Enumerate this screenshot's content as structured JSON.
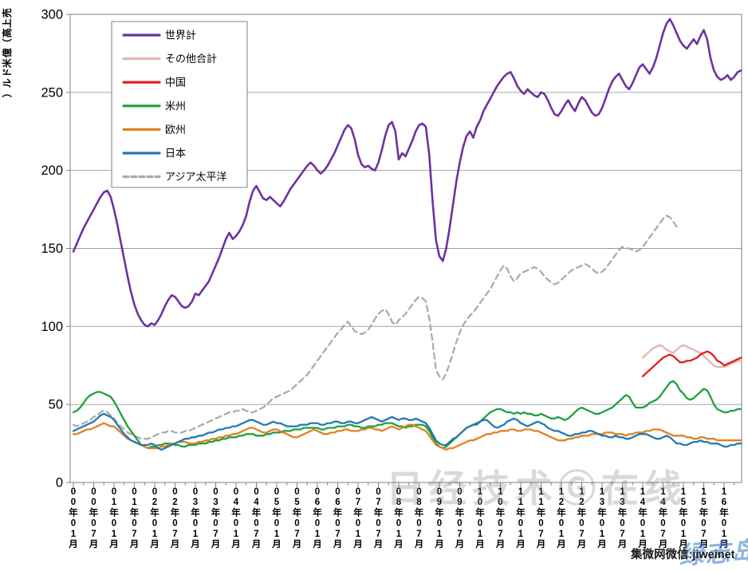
{
  "chart_data": {
    "type": "line",
    "title": "",
    "ylabel": "売上高（億米ドル）",
    "ylim": [
      0,
      300
    ],
    "y_ticks": [
      0,
      50,
      100,
      150,
      200,
      250,
      300
    ],
    "grid": true,
    "legend_position": "top-left-inside",
    "x_unit": "month",
    "x_start_label": "00年01月",
    "x_tick_labels": [
      "00年01月",
      "00年07月",
      "01年01月",
      "01年07月",
      "02年01月",
      "02年07月",
      "03年01月",
      "03年07月",
      "04年01月",
      "04年07月",
      "05年01月",
      "05年07月",
      "06年01月",
      "06年07月",
      "07年01月",
      "07年07月",
      "08年01月",
      "08年07月",
      "09年01月",
      "09年07月",
      "10年01月",
      "10年07月",
      "11年01月",
      "11年07月",
      "12年01月",
      "12年07月",
      "13年01月",
      "13年07月",
      "14年01月",
      "14年07月",
      "15年01月",
      "15年07月",
      "16年01月"
    ],
    "series": [
      {
        "name": "世界計",
        "color": "#6E32A0",
        "dash": false,
        "start_month": 0,
        "values": [
          148,
          153,
          158,
          163,
          167,
          171,
          175,
          179,
          183,
          186,
          187,
          183,
          175,
          165,
          154,
          143,
          132,
          122,
          114,
          108,
          104,
          101,
          100,
          102,
          101,
          104,
          108,
          113,
          117,
          120,
          119,
          116,
          113,
          112,
          113,
          116,
          121,
          120,
          123,
          126,
          129,
          134,
          139,
          144,
          150,
          156,
          160,
          156,
          158,
          161,
          165,
          171,
          180,
          187,
          190,
          186,
          182,
          181,
          183,
          181,
          179,
          177,
          180,
          184,
          188,
          191,
          194,
          197,
          200,
          203,
          205,
          203,
          200,
          198,
          200,
          203,
          207,
          211,
          216,
          221,
          226,
          229,
          227,
          220,
          210,
          204,
          202,
          203,
          201,
          200,
          205,
          213,
          222,
          229,
          231,
          225,
          207,
          211,
          209,
          214,
          219,
          225,
          229,
          230,
          228,
          210,
          180,
          155,
          145,
          142,
          150,
          163,
          178,
          193,
          205,
          215,
          222,
          225,
          221,
          228,
          232,
          238,
          242,
          246,
          250,
          254,
          257,
          260,
          262,
          263,
          259,
          254,
          251,
          249,
          252,
          250,
          248,
          247,
          250,
          249,
          245,
          240,
          236,
          235,
          238,
          242,
          245,
          241,
          238,
          243,
          247,
          245,
          241,
          237,
          235,
          236,
          240,
          246,
          252,
          257,
          260,
          262,
          258,
          254,
          252,
          256,
          261,
          266,
          268,
          265,
          262,
          266,
          272,
          280,
          288,
          294,
          297,
          293,
          288,
          283,
          280,
          278,
          281,
          284,
          281,
          286,
          290,
          284,
          272,
          264,
          260,
          258,
          259,
          261,
          258,
          260,
          263,
          264
        ]
      },
      {
        "name": "その他合計",
        "color": "#DFB8B4",
        "dash": false,
        "start_month": 168,
        "values": [
          80,
          82,
          84,
          86,
          87,
          88,
          87,
          85,
          84,
          83,
          85,
          87,
          88,
          87,
          86,
          85,
          84,
          83,
          81,
          79,
          77,
          75,
          74,
          74,
          74,
          75,
          76,
          77,
          78,
          78
        ]
      },
      {
        "name": "中国",
        "color": "#E01D1D",
        "dash": false,
        "start_month": 168,
        "values": [
          68,
          70,
          72,
          74,
          76,
          78,
          80,
          81,
          82,
          81,
          79,
          77,
          77,
          78,
          78,
          79,
          80,
          82,
          83,
          84,
          83,
          81,
          78,
          77,
          75,
          76,
          77,
          78,
          79,
          80
        ]
      },
      {
        "name": "米州",
        "color": "#1AA23C",
        "dash": false,
        "start_month": 0,
        "values": [
          45,
          46,
          48,
          51,
          54,
          56,
          57,
          58,
          58,
          57,
          56,
          55,
          52,
          48,
          44,
          40,
          36,
          33,
          30,
          27,
          24,
          23,
          22,
          23,
          23,
          24,
          24,
          25,
          25,
          25,
          24,
          24,
          23,
          23,
          24,
          24,
          24,
          25,
          25,
          25,
          26,
          26,
          27,
          27,
          28,
          28,
          29,
          29,
          29,
          30,
          30,
          31,
          31,
          31,
          30,
          30,
          30,
          31,
          31,
          32,
          32,
          32,
          33,
          33,
          33,
          34,
          34,
          34,
          35,
          35,
          35,
          35,
          35,
          34,
          34,
          35,
          35,
          35,
          36,
          36,
          36,
          37,
          37,
          36,
          36,
          35,
          35,
          36,
          36,
          36,
          37,
          37,
          38,
          38,
          38,
          37,
          36,
          36,
          35,
          36,
          36,
          37,
          37,
          37,
          36,
          33,
          29,
          25,
          23,
          22,
          23,
          25,
          27,
          29,
          31,
          33,
          35,
          36,
          37,
          38,
          39,
          41,
          43,
          45,
          46,
          47,
          47,
          46,
          45,
          45,
          44,
          45,
          44,
          45,
          44,
          44,
          43,
          43,
          44,
          43,
          42,
          41,
          41,
          42,
          41,
          40,
          41,
          43,
          45,
          47,
          48,
          47,
          46,
          45,
          44,
          44,
          45,
          46,
          47,
          48,
          50,
          52,
          54,
          56,
          55,
          51,
          48,
          48,
          48,
          49,
          51,
          52,
          53,
          55,
          58,
          61,
          64,
          65,
          63,
          59,
          57,
          54,
          53,
          54,
          56,
          58,
          60,
          59,
          55,
          50,
          47,
          46,
          45,
          45,
          46,
          46,
          47,
          47
        ]
      },
      {
        "name": "欧州",
        "color": "#E0821E",
        "dash": false,
        "start_month": 0,
        "values": [
          31,
          31,
          32,
          33,
          34,
          34,
          35,
          36,
          37,
          38,
          37,
          36,
          36,
          34,
          32,
          30,
          28,
          27,
          26,
          25,
          24,
          23,
          22,
          22,
          22,
          22,
          23,
          23,
          24,
          25,
          25,
          26,
          26,
          26,
          25,
          25,
          25,
          26,
          26,
          27,
          27,
          28,
          28,
          29,
          29,
          30,
          30,
          31,
          31,
          32,
          33,
          34,
          35,
          35,
          34,
          33,
          32,
          32,
          33,
          34,
          34,
          33,
          32,
          31,
          30,
          29,
          29,
          30,
          31,
          32,
          33,
          34,
          33,
          32,
          31,
          31,
          32,
          32,
          33,
          33,
          34,
          34,
          33,
          33,
          33,
          34,
          34,
          35,
          35,
          34,
          34,
          33,
          34,
          35,
          36,
          35,
          34,
          35,
          36,
          37,
          37,
          36,
          35,
          34,
          33,
          30,
          27,
          24,
          23,
          22,
          21,
          22,
          22,
          23,
          24,
          25,
          26,
          27,
          27,
          28,
          29,
          30,
          31,
          31,
          32,
          32,
          33,
          33,
          33,
          34,
          34,
          33,
          33,
          34,
          34,
          34,
          33,
          33,
          32,
          31,
          30,
          29,
          28,
          27,
          27,
          27,
          28,
          28,
          29,
          29,
          30,
          30,
          30,
          31,
          31,
          31,
          31,
          32,
          32,
          32,
          31,
          31,
          31,
          30,
          31,
          31,
          32,
          32,
          32,
          33,
          33,
          34,
          34,
          34,
          33,
          32,
          31,
          30,
          30,
          30,
          30,
          29,
          29,
          28,
          28,
          29,
          29,
          28,
          28,
          28,
          27,
          27,
          27,
          27,
          27,
          27,
          27,
          27
        ]
      },
      {
        "name": "日本",
        "color": "#2679B2",
        "dash": false,
        "start_month": 0,
        "values": [
          33,
          34,
          35,
          36,
          37,
          38,
          39,
          41,
          43,
          44,
          43,
          42,
          40,
          37,
          34,
          31,
          29,
          27,
          26,
          25,
          24,
          24,
          24,
          25,
          24,
          22,
          21,
          22,
          23,
          24,
          25,
          26,
          27,
          28,
          28,
          29,
          29,
          30,
          30,
          31,
          32,
          32,
          33,
          34,
          34,
          35,
          35,
          36,
          36,
          37,
          38,
          39,
          40,
          40,
          39,
          38,
          37,
          37,
          38,
          39,
          38,
          38,
          37,
          36,
          36,
          36,
          36,
          37,
          37,
          37,
          38,
          38,
          38,
          37,
          37,
          38,
          38,
          39,
          39,
          38,
          38,
          39,
          39,
          38,
          38,
          39,
          40,
          41,
          42,
          41,
          40,
          39,
          40,
          41,
          42,
          41,
          40,
          41,
          41,
          40,
          40,
          41,
          40,
          39,
          38,
          35,
          31,
          27,
          25,
          24,
          24,
          26,
          28,
          29,
          31,
          33,
          35,
          36,
          37,
          37,
          39,
          40,
          40,
          38,
          36,
          35,
          36,
          37,
          39,
          40,
          41,
          40,
          38,
          37,
          36,
          37,
          38,
          39,
          38,
          37,
          35,
          34,
          33,
          33,
          32,
          31,
          30,
          30,
          31,
          31,
          32,
          32,
          33,
          33,
          32,
          31,
          30,
          30,
          29,
          29,
          30,
          29,
          29,
          28,
          28,
          29,
          30,
          31,
          31,
          31,
          30,
          29,
          28,
          28,
          29,
          30,
          29,
          27,
          25,
          25,
          24,
          24,
          25,
          26,
          26,
          27,
          26,
          26,
          25,
          25,
          25,
          24,
          23,
          23,
          24,
          24,
          25,
          25
        ]
      },
      {
        "name": "アジア太平洋",
        "color": "#ABABAB",
        "dash": true,
        "start_month": 0,
        "values": [
          37,
          36,
          37,
          38,
          39,
          40,
          42,
          43,
          45,
          46,
          45,
          43,
          41,
          38,
          36,
          34,
          32,
          31,
          30,
          29,
          28,
          28,
          28,
          29,
          30,
          31,
          32,
          32,
          33,
          33,
          32,
          32,
          32,
          33,
          33,
          34,
          35,
          36,
          37,
          38,
          39,
          40,
          41,
          42,
          43,
          44,
          45,
          45,
          46,
          46,
          47,
          46,
          45,
          45,
          46,
          47,
          48,
          50,
          52,
          54,
          55,
          56,
          57,
          58,
          59,
          61,
          63,
          65,
          67,
          69,
          72,
          75,
          78,
          81,
          84,
          87,
          90,
          93,
          96,
          98,
          101,
          103,
          100,
          97,
          96,
          95,
          96,
          98,
          101,
          105,
          108,
          110,
          111,
          108,
          103,
          101,
          104,
          106,
          108,
          111,
          114,
          117,
          119,
          118,
          116,
          105,
          90,
          72,
          68,
          66,
          70,
          76,
          83,
          90,
          96,
          101,
          104,
          107,
          109,
          112,
          115,
          118,
          121,
          124,
          128,
          132,
          136,
          139,
          137,
          132,
          129,
          131,
          134,
          135,
          136,
          137,
          138,
          137,
          135,
          132,
          130,
          128,
          127,
          128,
          130,
          132,
          134,
          136,
          137,
          138,
          139,
          140,
          139,
          137,
          135,
          134,
          135,
          137,
          140,
          143,
          146,
          149,
          151,
          150,
          150,
          149,
          148,
          149,
          151,
          154,
          157,
          160,
          163,
          166,
          169,
          171,
          170,
          167,
          164,
          163
        ]
      }
    ]
  },
  "watermarks": {
    "center": "日经技术Ⓖ在线",
    "bottom_right": "集微网微信:jiweinet",
    "overlay_script": "绿志岛"
  }
}
